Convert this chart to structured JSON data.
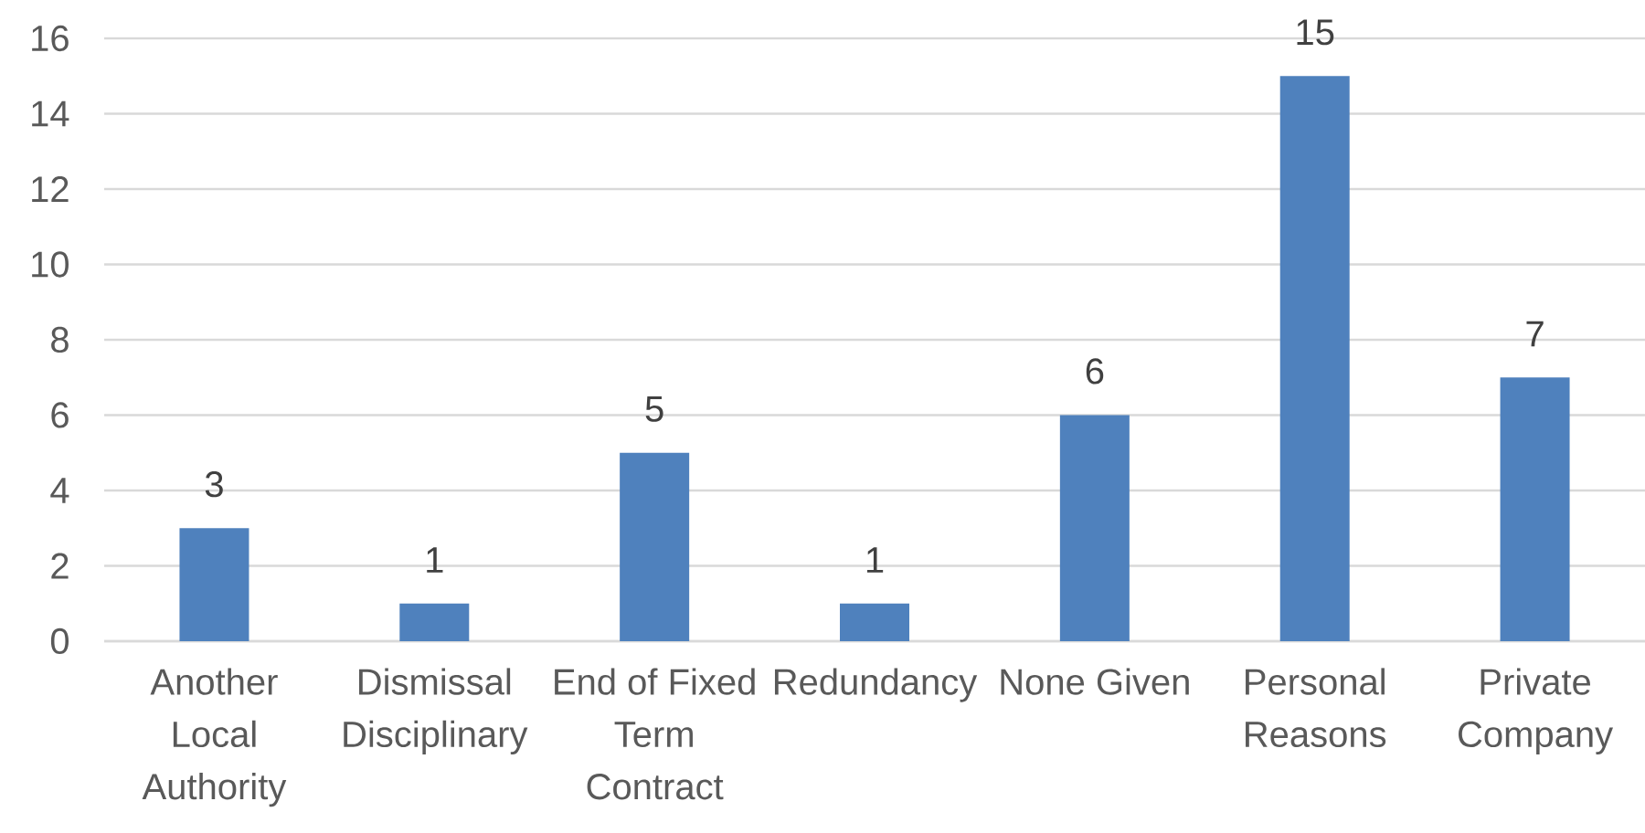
{
  "chart_data": {
    "type": "bar",
    "categories": [
      "Another Local Authority",
      "Dismissal Disciplinary",
      "End of Fixed Term Contract",
      "Redundancy",
      "None Given",
      "Personal Reasons",
      "Private Company"
    ],
    "values": [
      3,
      1,
      5,
      1,
      6,
      15,
      7
    ],
    "color": "#4f81bd",
    "ylim": [
      0,
      16
    ],
    "yticks": [
      0,
      2,
      4,
      6,
      8,
      10,
      12,
      14,
      16
    ],
    "grid": "y",
    "data_labels": true
  }
}
